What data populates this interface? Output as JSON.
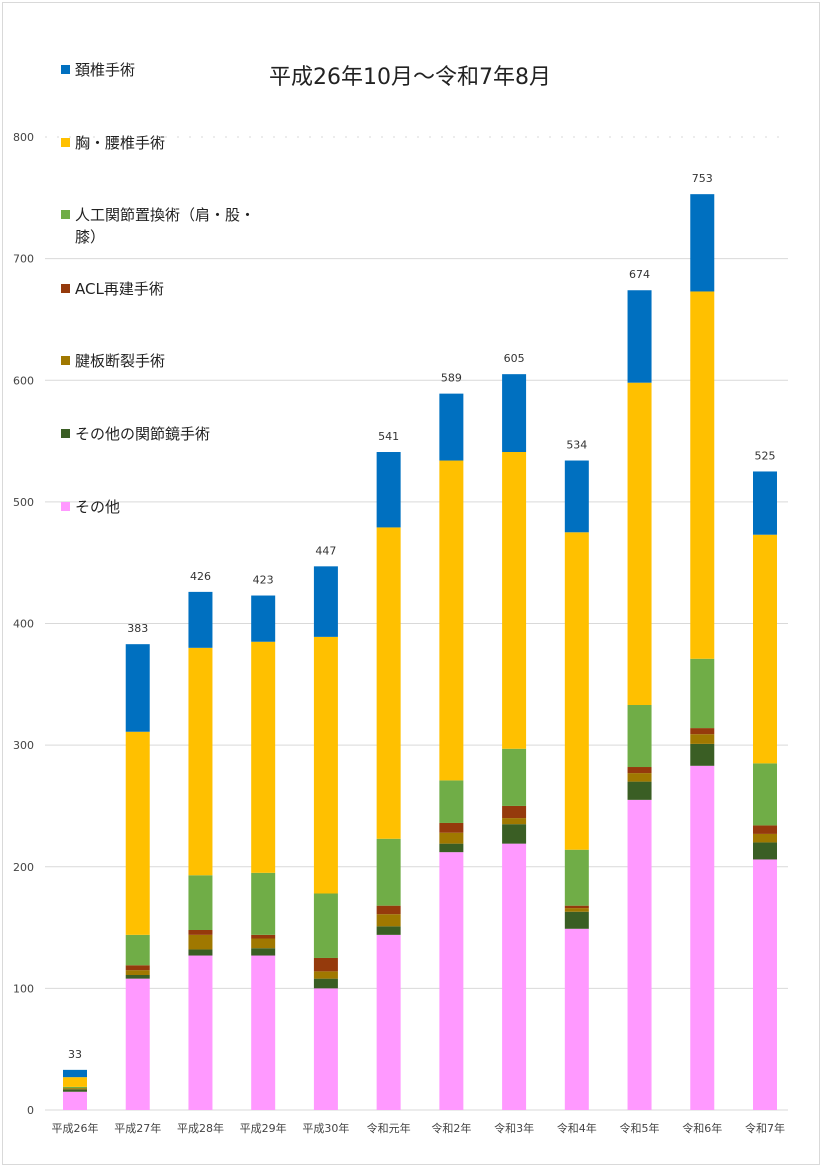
{
  "chart_data": {
    "type": "bar",
    "stacked": true,
    "title": "平成26年10月～令和7年8月",
    "xlabel": "",
    "ylabel": "",
    "ylim": [
      0,
      800
    ],
    "yticks": [
      0,
      100,
      200,
      300,
      400,
      500,
      600,
      700,
      800
    ],
    "grid": true,
    "legend_position": "left",
    "categories": [
      "平成26年",
      "平成27年",
      "平成28年",
      "平成29年",
      "平成30年",
      "令和元年",
      "令和2年",
      "令和3年",
      "令和4年",
      "令和5年",
      "令和6年",
      "令和7年"
    ],
    "totals": [
      33,
      383,
      426,
      423,
      447,
      541,
      589,
      605,
      534,
      674,
      753,
      525
    ],
    "total_labels": [
      "33",
      "383",
      "426",
      "423",
      "447",
      "541",
      "589",
      "605",
      "534",
      "674",
      "753",
      "525"
    ],
    "series": [
      {
        "name": "その他",
        "color": "#FF99FF",
        "values": [
          15,
          108,
          127,
          127,
          100,
          144,
          212,
          219,
          149,
          255,
          283,
          206
        ]
      },
      {
        "name": "その他の関節鏡手術",
        "color": "#3A5E24",
        "values": [
          2,
          3,
          5,
          6,
          8,
          7,
          7,
          16,
          14,
          15,
          18,
          14
        ]
      },
      {
        "name": "腱板断裂手術",
        "color": "#A07800",
        "values": [
          1,
          4,
          12,
          8,
          6,
          10,
          9,
          5,
          3,
          7,
          8,
          7
        ]
      },
      {
        "name": "ACL再建手術",
        "color": "#953A0C",
        "values": [
          0,
          4,
          4,
          3,
          11,
          7,
          8,
          10,
          2,
          5,
          5,
          7
        ]
      },
      {
        "name": "人工関節置換術（肩・股・膝）",
        "color": "#70AD47",
        "values": [
          1,
          25,
          45,
          51,
          53,
          55,
          35,
          47,
          46,
          51,
          57,
          51
        ]
      },
      {
        "name": "胸・腰椎手術",
        "color": "#FFC000",
        "values": [
          8,
          167,
          187,
          190,
          211,
          256,
          263,
          244,
          261,
          265,
          302,
          188
        ]
      },
      {
        "name": "頚椎手術",
        "color": "#0070C0",
        "values": [
          6,
          72,
          46,
          38,
          58,
          62,
          55,
          64,
          59,
          76,
          80,
          52
        ]
      }
    ],
    "legend_order": [
      "頚椎手術",
      "胸・腰椎手術",
      "人工関節置換術（肩・股・膝）",
      "ACL再建手術",
      "腱板断裂手術",
      "その他の関節鏡手術",
      "その他"
    ],
    "legend_lines": {
      "人工関節置換術（肩・股・膝）": [
        "人工関節置換術（肩・股・",
        "膝）"
      ]
    }
  }
}
